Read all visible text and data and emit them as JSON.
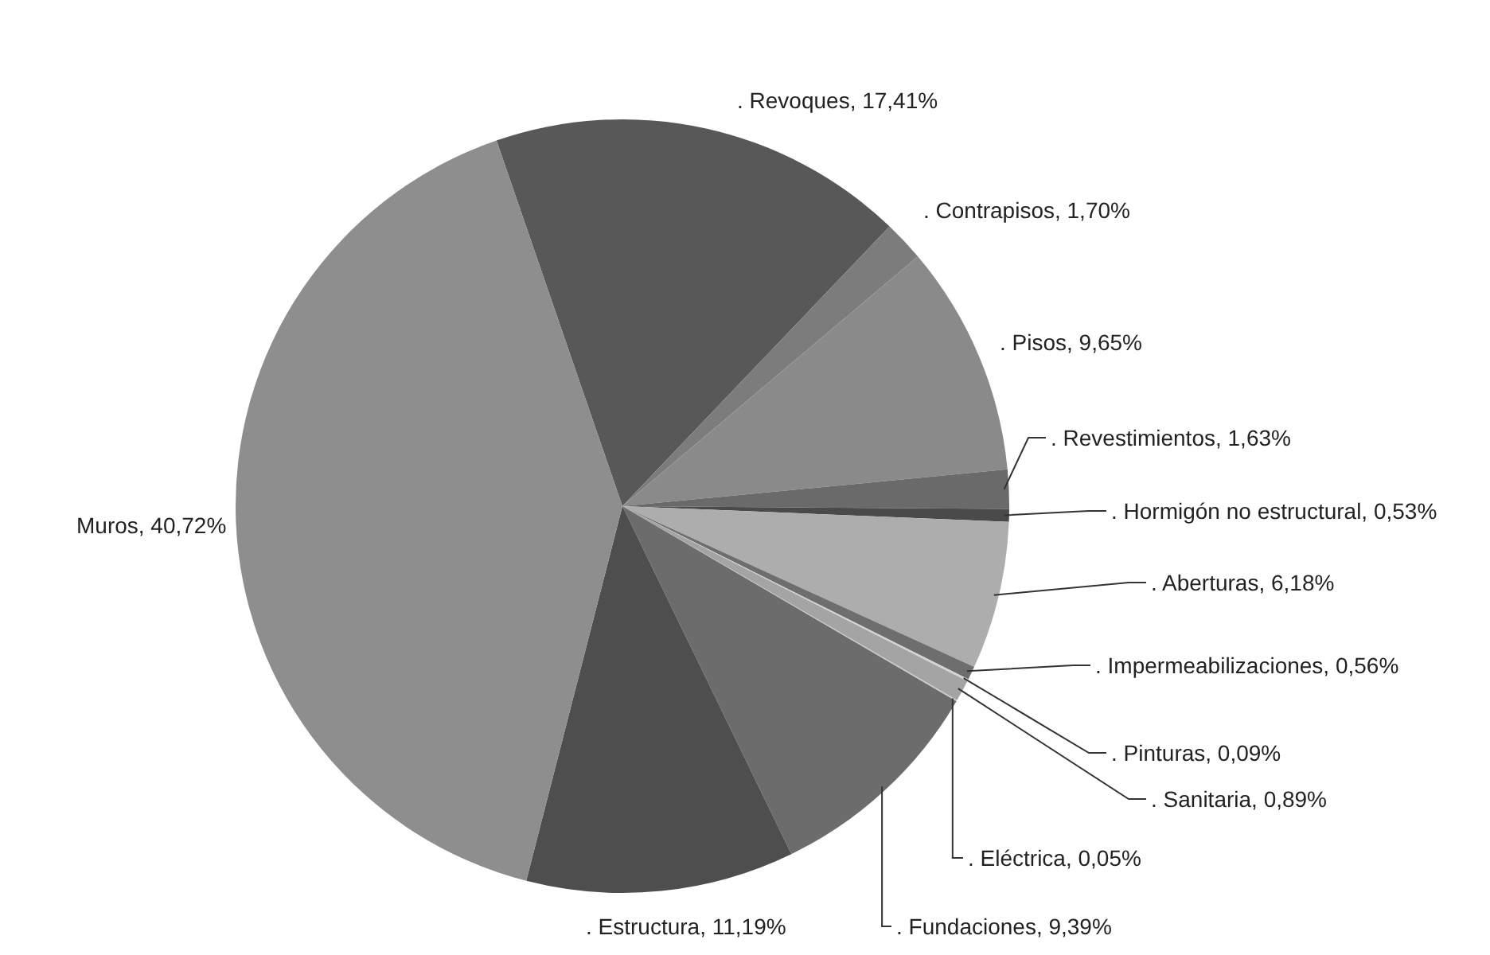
{
  "chart_data": {
    "type": "pie",
    "categories": [
      ". Revoques",
      ". Contrapisos",
      ". Pisos",
      ". Revestimientos",
      ". Hormigón no estructural",
      ". Aberturas",
      ". Impermeabilizaciones",
      ". Pinturas",
      ". Sanitaria",
      ". Eléctrica",
      ". Fundaciones",
      ". Estructura",
      "Muros"
    ],
    "values": [
      17.41,
      1.7,
      9.65,
      1.63,
      0.53,
      6.18,
      0.56,
      0.09,
      0.89,
      0.05,
      9.39,
      11.19,
      40.72
    ],
    "value_labels": [
      "17,41%",
      "1,70%",
      "9,65%",
      "1,63%",
      "0,53%",
      "6,18%",
      "0,56%",
      "0,09%",
      "0,89%",
      "0,05%",
      "9,39%",
      "11,19%",
      "40,72%"
    ],
    "colors": [
      "#585858",
      "#7c7c7c",
      "#8a8a8a",
      "#6a6a6a",
      "#4a4a4a",
      "#adadad",
      "#6e6e6e",
      "#d4d4d4",
      "#a4a4a4",
      "#c8c8c8",
      "#6c6c6c",
      "#4e4e4e",
      "#8e8e8e"
    ]
  }
}
